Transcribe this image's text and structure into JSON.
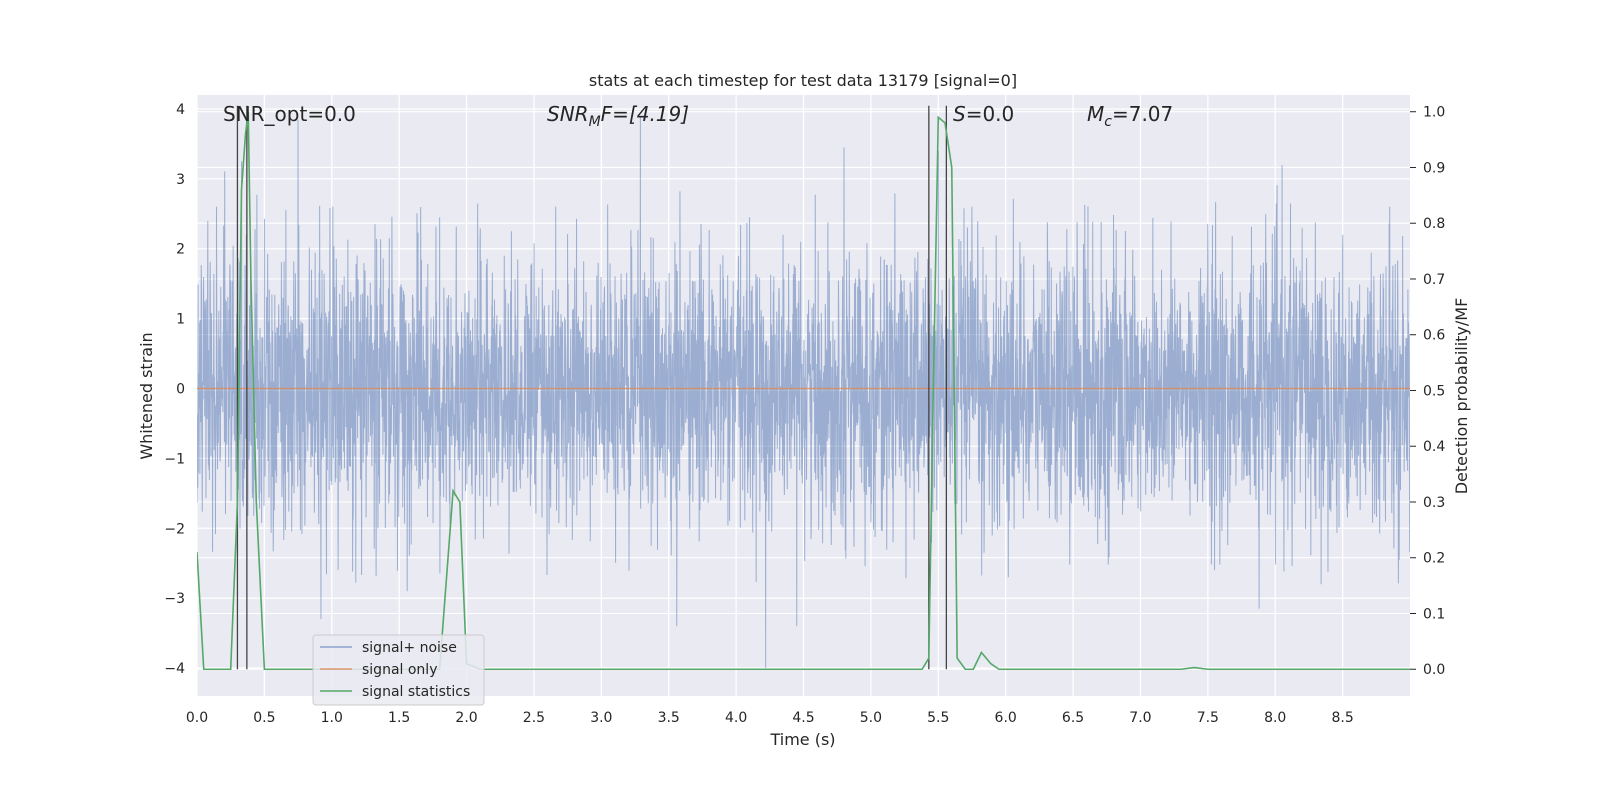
{
  "chart_data": {
    "type": "line",
    "title": "stats at each timestep for test data 13179 [signal=0]",
    "xlabel": "Time (s)",
    "ylabel_left": "Whitened strain",
    "ylabel_right": "Detection probability/MF",
    "xlim": [
      0.0,
      9.0
    ],
    "ylim_left": [
      -4.4,
      4.2
    ],
    "ylim_right": [
      -0.048,
      1.03
    ],
    "xticks": [
      0.0,
      0.5,
      1.0,
      1.5,
      2.0,
      2.5,
      3.0,
      3.5,
      4.0,
      4.5,
      5.0,
      5.5,
      6.0,
      6.5,
      7.0,
      7.5,
      8.0,
      8.5
    ],
    "xtick_labels": [
      "0.0",
      "0.5",
      "1.0",
      "1.5",
      "2.0",
      "2.5",
      "3.0",
      "3.5",
      "4.0",
      "4.5",
      "5.0",
      "5.5",
      "6.0",
      "6.5",
      "7.0",
      "7.5",
      "8.0",
      "8.5"
    ],
    "yticks_left": [
      4,
      3,
      2,
      1,
      0,
      -1,
      -2,
      -3,
      -4
    ],
    "ytick_labels_left": [
      "4",
      "3",
      "2",
      "1",
      "0",
      "−1",
      "−2",
      "−3",
      "−4"
    ],
    "yticks_right": [
      1.0,
      0.9,
      0.8,
      0.7,
      0.6,
      0.5,
      0.4,
      0.3,
      0.2,
      0.1,
      0.0
    ],
    "ytick_labels_right": [
      "1.0",
      "0.9",
      "0.8",
      "0.7",
      "0.6",
      "0.5",
      "0.4",
      "0.3",
      "0.2",
      "0.1",
      "0.0"
    ],
    "grid": true,
    "legend_position": "lower-left",
    "annotations": {
      "snr_opt": "SNR_opt=0.0",
      "snr_mf_prefix": "SNR",
      "snr_mf_sub": "M",
      "snr_mf_suffix": "F=[4.19]",
      "s_prefix": "S",
      "s_suffix": "=0.0",
      "mc_prefix": "M",
      "mc_sub": "c",
      "mc_suffix": "=7.07"
    },
    "vlines_x": [
      0.3,
      0.37,
      5.43,
      5.56
    ],
    "series": [
      {
        "name": "signal+ noise",
        "color": "#4c72b0",
        "axis": "left",
        "kind": "noise",
        "sigma": 0.95,
        "spikes": [
          [
            0.08,
            2.4
          ],
          [
            0.33,
            3.25
          ],
          [
            0.75,
            3.85
          ],
          [
            1.32,
            2.35
          ],
          [
            1.8,
            2.45
          ],
          [
            2.1,
            2.1
          ],
          [
            3.29,
            3.9
          ],
          [
            4.1,
            2.45
          ],
          [
            4.48,
            2.1
          ],
          [
            4.8,
            3.45
          ],
          [
            5.5,
            3.4
          ],
          [
            5.75,
            2.6
          ],
          [
            7.5,
            1.9
          ],
          [
            8.05,
            3.2
          ],
          [
            8.2,
            2.3
          ],
          [
            8.5,
            2.2
          ],
          [
            8.85,
            2.6
          ],
          [
            0.92,
            -3.3
          ],
          [
            1.56,
            -2.9
          ],
          [
            3.56,
            -3.4
          ],
          [
            4.22,
            -4.0
          ],
          [
            4.45,
            -3.4
          ],
          [
            5.45,
            -2.2
          ],
          [
            5.84,
            -2.35
          ],
          [
            7.55,
            -2.6
          ],
          [
            7.88,
            -3.15
          ],
          [
            8.34,
            -2.8
          ],
          [
            6.02,
            -2.7
          ]
        ]
      },
      {
        "name": "signal only",
        "color": "#dd8452",
        "axis": "left",
        "kind": "flat",
        "value": 0.0
      },
      {
        "name": "signal statistics",
        "color": "#55a868",
        "axis": "right",
        "kind": "line",
        "x": [
          0.0,
          0.05,
          0.1,
          0.2,
          0.25,
          0.3,
          0.33,
          0.36,
          0.38,
          0.4,
          0.44,
          0.5,
          1.7,
          1.8,
          1.9,
          1.95,
          2.0,
          2.1,
          5.38,
          5.43,
          5.46,
          5.5,
          5.55,
          5.6,
          5.64,
          5.7,
          5.76,
          5.82,
          5.89,
          5.95,
          6.0,
          7.3,
          7.4,
          7.5,
          7.8,
          7.9,
          9.0
        ],
        "y": [
          0.21,
          0.0,
          0.0,
          0.0,
          0.0,
          0.3,
          0.86,
          0.96,
          1.0,
          0.7,
          0.3,
          0.0,
          0.0,
          0.0,
          0.32,
          0.3,
          0.01,
          0.0,
          0.0,
          0.02,
          0.46,
          0.99,
          0.98,
          0.9,
          0.02,
          0.0,
          0.0,
          0.03,
          0.01,
          0.0,
          0.0,
          0.0,
          0.003,
          0.0,
          0.0,
          0.0,
          0.0
        ]
      }
    ]
  }
}
